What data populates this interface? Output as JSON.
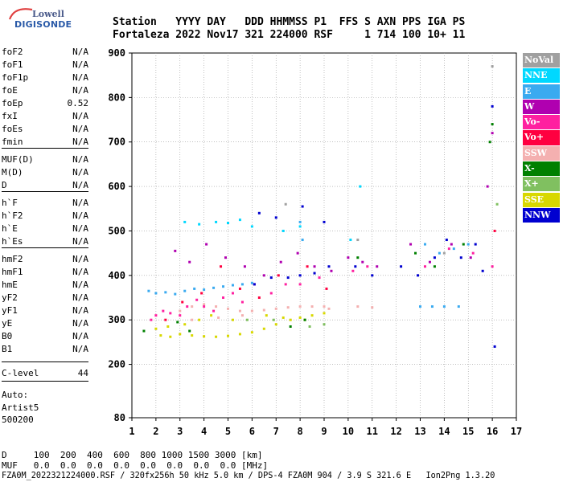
{
  "logo": {
    "line1": "Lowell",
    "line2": "DIGISONDE"
  },
  "header": {
    "line1": "Station   YYYY DAY   DDD HHMMSS P1  FFS S AXN PPS IGA PS",
    "line2": "Fortaleza 2022 Nov17 321 224000 RSF     1 714 100 10+ 11"
  },
  "params": [
    {
      "name": "foF2",
      "value": "N/A"
    },
    {
      "name": "foF1",
      "value": "N/A"
    },
    {
      "name": "foF1p",
      "value": "N/A"
    },
    {
      "name": "foE",
      "value": "N/A"
    },
    {
      "name": "foEp",
      "value": "0.52"
    },
    {
      "name": "fxI",
      "value": "N/A"
    },
    {
      "name": "foEs",
      "value": "N/A"
    },
    {
      "name": "fmin",
      "value": "N/A"
    },
    {
      "name": "MUF(D)",
      "value": "N/A"
    },
    {
      "name": "M(D)",
      "value": "N/A"
    },
    {
      "name": "D",
      "value": "N/A"
    },
    {
      "name": "h`F",
      "value": "N/A"
    },
    {
      "name": "h`F2",
      "value": "N/A"
    },
    {
      "name": "h`E",
      "value": "N/A"
    },
    {
      "name": "h`Es",
      "value": "N/A"
    },
    {
      "name": "hmF2",
      "value": "N/A"
    },
    {
      "name": "hmF1",
      "value": "N/A"
    },
    {
      "name": "hmE",
      "value": "N/A"
    },
    {
      "name": "yF2",
      "value": "N/A"
    },
    {
      "name": "yF1",
      "value": "N/A"
    },
    {
      "name": "yE",
      "value": "N/A"
    },
    {
      "name": "B0",
      "value": "N/A"
    },
    {
      "name": "B1",
      "value": "N/A"
    },
    {
      "name": "C-level",
      "value": "44"
    }
  ],
  "auto": {
    "line1": "Auto:",
    "line2": "Artist5",
    "line3": "500200"
  },
  "legend": [
    {
      "label": "NoVal",
      "color": "#a0a0a0"
    },
    {
      "label": "NNE",
      "color": "#00d8ff"
    },
    {
      "label": "E",
      "color": "#3aaaf0"
    },
    {
      "label": "W",
      "color": "#b000b0"
    },
    {
      "label": "Vo-",
      "color": "#ff20a0"
    },
    {
      "label": "Vo+",
      "color": "#ff0040"
    },
    {
      "label": "SSW",
      "color": "#f4b0b0"
    },
    {
      "label": "X-",
      "color": "#008000"
    },
    {
      "label": "X+",
      "color": "#80c060"
    },
    {
      "label": "SSE",
      "color": "#d8d800"
    },
    {
      "label": "NNW",
      "color": "#0000d0"
    }
  ],
  "footer": {
    "d_line": "D     100  200  400  600  800 1000 1500 3000 [km]",
    "muf_line": "MUF   0.0  0.0  0.0  0.0  0.0  0.0  0.0  0.0 [MHz]",
    "file_line": "FZA0M_2022321224000.RSF / 320fx256h 50 kHz 5.0 km / DPS-4 FZA0M 904 / 3.9 S 321.6 E   Ion2Png 1.3.20"
  },
  "chart_data": {
    "type": "scatter",
    "xlabel": "",
    "ylabel": "",
    "xlim": [
      1,
      17
    ],
    "ylim": [
      80,
      900
    ],
    "x_ticks": [
      1,
      2,
      3,
      4,
      5,
      6,
      7,
      8,
      9,
      10,
      11,
      12,
      13,
      14,
      15,
      16,
      17
    ],
    "y_ticks": [
      80,
      200,
      300,
      400,
      500,
      600,
      700,
      800,
      900
    ],
    "grid": true,
    "legend_position": "right",
    "clusters": [
      {
        "name": "SSE",
        "color": "#d8d800",
        "points": [
          [
            2.2,
            265
          ],
          [
            2.6,
            262
          ],
          [
            3.0,
            268
          ],
          [
            3.5,
            265
          ],
          [
            4.0,
            263
          ],
          [
            4.5,
            262
          ],
          [
            5.0,
            264
          ],
          [
            5.5,
            268
          ],
          [
            6.0,
            272
          ],
          [
            6.5,
            280
          ],
          [
            7.0,
            290
          ],
          [
            7.6,
            300
          ],
          [
            8.0,
            305
          ],
          [
            8.5,
            310
          ],
          [
            9.0,
            315
          ],
          [
            2.0,
            280
          ],
          [
            2.5,
            285
          ],
          [
            3.2,
            290
          ],
          [
            3.8,
            300
          ],
          [
            4.3,
            310
          ],
          [
            5.2,
            300
          ],
          [
            6.6,
            310
          ],
          [
            7.3,
            305
          ],
          [
            8.2,
            300
          ]
        ]
      },
      {
        "name": "SSW",
        "color": "#f4b0b0",
        "points": [
          [
            3.0,
            320
          ],
          [
            3.5,
            330
          ],
          [
            4.0,
            335
          ],
          [
            4.5,
            330
          ],
          [
            5.0,
            325
          ],
          [
            5.5,
            320
          ],
          [
            6.0,
            320
          ],
          [
            6.5,
            322
          ],
          [
            7.0,
            325
          ],
          [
            7.5,
            328
          ],
          [
            8.0,
            330
          ],
          [
            8.5,
            330
          ],
          [
            9.0,
            330
          ],
          [
            9.2,
            325
          ],
          [
            3.5,
            300
          ],
          [
            4.6,
            305
          ],
          [
            5.6,
            310
          ],
          [
            10.4,
            330
          ],
          [
            11.0,
            328
          ]
        ]
      },
      {
        "name": "Vo-",
        "color": "#ff20a0",
        "points": [
          [
            1.8,
            300
          ],
          [
            2.0,
            310
          ],
          [
            2.3,
            320
          ],
          [
            2.6,
            315
          ],
          [
            3.0,
            310
          ],
          [
            3.3,
            330
          ],
          [
            3.7,
            345
          ],
          [
            4.0,
            330
          ],
          [
            4.4,
            320
          ],
          [
            4.8,
            350
          ],
          [
            5.2,
            360
          ],
          [
            5.6,
            340
          ],
          [
            6.1,
            380
          ],
          [
            6.8,
            360
          ],
          [
            7.4,
            380
          ],
          [
            8.0,
            380
          ],
          [
            8.8,
            395
          ],
          [
            10.2,
            410
          ],
          [
            10.8,
            420
          ],
          [
            13.2,
            420
          ],
          [
            14.2,
            460
          ],
          [
            15.2,
            450
          ],
          [
            16.0,
            420
          ]
        ]
      },
      {
        "name": "Vo+",
        "color": "#ff0040",
        "points": [
          [
            2.4,
            300
          ],
          [
            3.1,
            340
          ],
          [
            3.9,
            360
          ],
          [
            4.7,
            420
          ],
          [
            5.5,
            370
          ],
          [
            6.3,
            350
          ],
          [
            7.1,
            400
          ],
          [
            8.3,
            420
          ],
          [
            9.1,
            370
          ],
          [
            16.1,
            500
          ]
        ]
      },
      {
        "name": "E",
        "color": "#3aaaf0",
        "points": [
          [
            1.7,
            365
          ],
          [
            2.0,
            360
          ],
          [
            2.4,
            362
          ],
          [
            2.8,
            358
          ],
          [
            3.2,
            365
          ],
          [
            3.6,
            370
          ],
          [
            4.0,
            368
          ],
          [
            4.4,
            372
          ],
          [
            4.8,
            375
          ],
          [
            5.2,
            378
          ],
          [
            5.6,
            380
          ],
          [
            6.0,
            383
          ],
          [
            13.0,
            330
          ],
          [
            13.5,
            330
          ],
          [
            14.0,
            330
          ],
          [
            14.6,
            330
          ],
          [
            13.2,
            470
          ],
          [
            13.8,
            450
          ],
          [
            14.4,
            460
          ],
          [
            15.0,
            470
          ],
          [
            8.1,
            480
          ],
          [
            8.0,
            520
          ]
        ]
      },
      {
        "name": "NNE",
        "color": "#00d8ff",
        "points": [
          [
            3.2,
            520
          ],
          [
            3.8,
            515
          ],
          [
            4.5,
            520
          ],
          [
            5.0,
            518
          ],
          [
            5.5,
            525
          ],
          [
            6.0,
            510
          ],
          [
            7.3,
            500
          ],
          [
            8.0,
            510
          ],
          [
            10.5,
            600
          ],
          [
            10.1,
            480
          ]
        ]
      },
      {
        "name": "W",
        "color": "#b000b0",
        "points": [
          [
            2.8,
            455
          ],
          [
            3.4,
            430
          ],
          [
            4.1,
            470
          ],
          [
            4.9,
            440
          ],
          [
            5.7,
            420
          ],
          [
            6.5,
            400
          ],
          [
            7.2,
            430
          ],
          [
            7.9,
            450
          ],
          [
            8.6,
            420
          ],
          [
            9.3,
            410
          ],
          [
            10.0,
            440
          ],
          [
            10.6,
            430
          ],
          [
            11.2,
            420
          ],
          [
            12.6,
            470
          ],
          [
            13.4,
            430
          ],
          [
            14.3,
            470
          ],
          [
            15.1,
            440
          ],
          [
            15.8,
            600
          ],
          [
            16.0,
            720
          ]
        ]
      },
      {
        "name": "X-",
        "color": "#008000",
        "points": [
          [
            1.5,
            275
          ],
          [
            2.9,
            295
          ],
          [
            3.4,
            275
          ],
          [
            7.6,
            285
          ],
          [
            8.2,
            300
          ],
          [
            10.4,
            440
          ],
          [
            12.8,
            450
          ],
          [
            13.6,
            420
          ],
          [
            14.8,
            470
          ],
          [
            15.9,
            700
          ],
          [
            16.0,
            740
          ]
        ]
      },
      {
        "name": "X+",
        "color": "#80c060",
        "points": [
          [
            5.8,
            300
          ],
          [
            6.9,
            300
          ],
          [
            8.4,
            285
          ],
          [
            9.0,
            290
          ],
          [
            16.2,
            560
          ]
        ]
      },
      {
        "name": "NNW",
        "color": "#0000d0",
        "points": [
          [
            6.1,
            380
          ],
          [
            6.8,
            395
          ],
          [
            7.5,
            395
          ],
          [
            8.0,
            400
          ],
          [
            8.6,
            405
          ],
          [
            9.2,
            420
          ],
          [
            10.3,
            420
          ],
          [
            11.0,
            400
          ],
          [
            12.2,
            420
          ],
          [
            12.9,
            400
          ],
          [
            13.6,
            440
          ],
          [
            14.1,
            480
          ],
          [
            14.7,
            440
          ],
          [
            15.3,
            470
          ],
          [
            15.6,
            410
          ],
          [
            16.0,
            780
          ],
          [
            16.1,
            240
          ],
          [
            6.3,
            540
          ],
          [
            7.0,
            530
          ],
          [
            8.1,
            555
          ],
          [
            9.0,
            520
          ]
        ]
      },
      {
        "name": "NoVal",
        "color": "#a0a0a0",
        "points": [
          [
            7.4,
            560
          ],
          [
            10.4,
            480
          ],
          [
            14.0,
            450
          ],
          [
            16.0,
            870
          ]
        ]
      }
    ]
  }
}
